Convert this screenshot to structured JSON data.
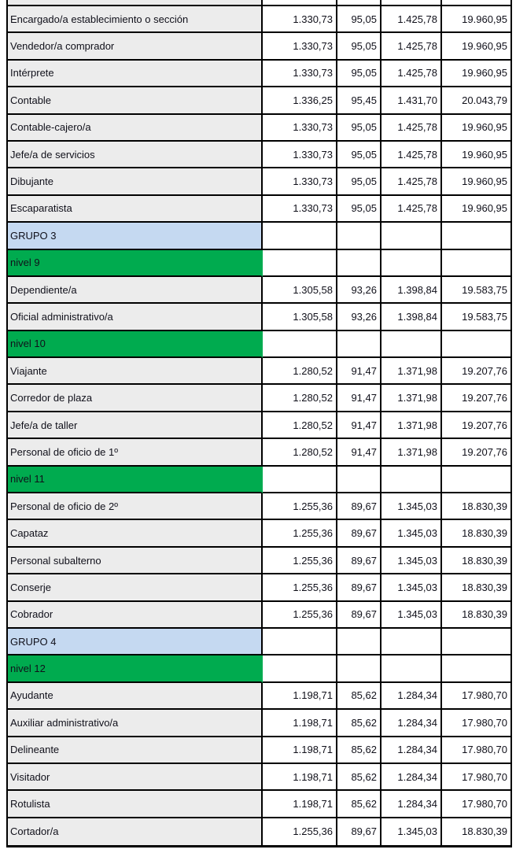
{
  "document": {
    "kind": "salary-table-page",
    "visible_column_count": 5
  },
  "colors": {
    "border": "#000000",
    "text": "#10101a",
    "item_label_bg": "#ececec",
    "group_row_bg": "#c5d9f1",
    "level_row_bg": "#00ab4f",
    "page_bg": "#ffffff"
  },
  "table": {
    "rows": [
      {
        "type": "item",
        "label": "Encargado/a establecimiento o sección",
        "values": [
          "1.330,73",
          "95,05",
          "1.425,78",
          "19.960,95"
        ]
      },
      {
        "type": "item",
        "label": "Vendedor/a comprador",
        "values": [
          "1.330,73",
          "95,05",
          "1.425,78",
          "19.960,95"
        ]
      },
      {
        "type": "item",
        "label": "Intérprete",
        "values": [
          "1.330,73",
          "95,05",
          "1.425,78",
          "19.960,95"
        ]
      },
      {
        "type": "item",
        "label": "Contable",
        "values": [
          "1.336,25",
          "95,45",
          "1.431,70",
          "20.043,79"
        ]
      },
      {
        "type": "item",
        "label": "Contable-cajero/a",
        "values": [
          "1.330,73",
          "95,05",
          "1.425,78",
          "19.960,95"
        ]
      },
      {
        "type": "item",
        "label": "Jefe/a de servicios",
        "values": [
          "1.330,73",
          "95,05",
          "1.425,78",
          "19.960,95"
        ]
      },
      {
        "type": "item",
        "label": "Dibujante",
        "values": [
          "1.330,73",
          "95,05",
          "1.425,78",
          "19.960,95"
        ]
      },
      {
        "type": "item",
        "label": "Escaparatista",
        "values": [
          "1.330,73",
          "95,05",
          "1.425,78",
          "19.960,95"
        ]
      },
      {
        "type": "group",
        "label": "GRUPO 3",
        "values": [
          "",
          "",
          "",
          ""
        ]
      },
      {
        "type": "level",
        "label": "nivel 9",
        "values": [
          "",
          "",
          "",
          ""
        ]
      },
      {
        "type": "item",
        "label": "Dependiente/a",
        "values": [
          "1.305,58",
          "93,26",
          "1.398,84",
          "19.583,75"
        ]
      },
      {
        "type": "item",
        "label": "Oficial administrativo/a",
        "values": [
          "1.305,58",
          "93,26",
          "1.398,84",
          "19.583,75"
        ]
      },
      {
        "type": "level",
        "label": "nivel 10",
        "values": [
          "",
          "",
          "",
          ""
        ]
      },
      {
        "type": "item",
        "label": "Viajante",
        "values": [
          "1.280,52",
          "91,47",
          "1.371,98",
          "19.207,76"
        ]
      },
      {
        "type": "item",
        "label": "Corredor de plaza",
        "values": [
          "1.280,52",
          "91,47",
          "1.371,98",
          "19.207,76"
        ]
      },
      {
        "type": "item",
        "label": "Jefe/a de taller",
        "values": [
          "1.280,52",
          "91,47",
          "1.371,98",
          "19.207,76"
        ]
      },
      {
        "type": "item",
        "label": "Personal de oficio de 1º",
        "values": [
          "1.280,52",
          "91,47",
          "1.371,98",
          "19.207,76"
        ]
      },
      {
        "type": "level",
        "label": "nivel 11",
        "values": [
          "",
          "",
          "",
          ""
        ]
      },
      {
        "type": "item",
        "label": "Personal de oficio de 2º",
        "values": [
          "1.255,36",
          "89,67",
          "1.345,03",
          "18.830,39"
        ]
      },
      {
        "type": "item",
        "label": "Capataz",
        "values": [
          "1.255,36",
          "89,67",
          "1.345,03",
          "18.830,39"
        ]
      },
      {
        "type": "item",
        "label": "Personal subalterno",
        "values": [
          "1.255,36",
          "89,67",
          "1.345,03",
          "18.830,39"
        ]
      },
      {
        "type": "item",
        "label": "Conserje",
        "values": [
          "1.255,36",
          "89,67",
          "1.345,03",
          "18.830,39"
        ]
      },
      {
        "type": "item",
        "label": "Cobrador",
        "values": [
          "1.255,36",
          "89,67",
          "1.345,03",
          "18.830,39"
        ]
      },
      {
        "type": "group",
        "label": "GRUPO 4",
        "values": [
          "",
          "",
          "",
          ""
        ]
      },
      {
        "type": "level",
        "label": "nivel 12",
        "values": [
          "",
          "",
          "",
          ""
        ]
      },
      {
        "type": "item",
        "label": "Ayudante",
        "values": [
          "1.198,71",
          "85,62",
          "1.284,34",
          "17.980,70"
        ]
      },
      {
        "type": "item",
        "label": "Auxiliar administrativo/a",
        "values": [
          "1.198,71",
          "85,62",
          "1.284,34",
          "17.980,70"
        ]
      },
      {
        "type": "item",
        "label": "Delineante",
        "values": [
          "1.198,71",
          "85,62",
          "1.284,34",
          "17.980,70"
        ]
      },
      {
        "type": "item",
        "label": "Visitador",
        "values": [
          "1.198,71",
          "85,62",
          "1.284,34",
          "17.980,70"
        ]
      },
      {
        "type": "item",
        "label": "Rotulista",
        "values": [
          "1.198,71",
          "85,62",
          "1.284,34",
          "17.980,70"
        ]
      },
      {
        "type": "item",
        "label": "Cortador/a",
        "values": [
          "1.255,36",
          "89,67",
          "1.345,03",
          "18.830,39"
        ]
      }
    ]
  }
}
